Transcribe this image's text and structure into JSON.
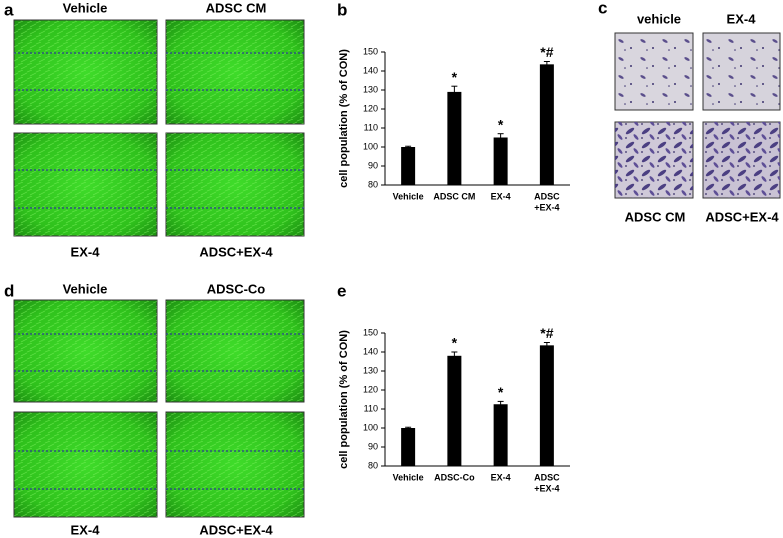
{
  "panels": [
    {
      "label": "a",
      "captions": [
        "Vehicle",
        "ADSC CM",
        "EX-4",
        "ADSC+EX-4"
      ]
    },
    {
      "label": "b"
    },
    {
      "label": "c",
      "captions": [
        "vehicle",
        "EX-4",
        "ADSC CM",
        "ADSC+EX-4"
      ]
    },
    {
      "label": "d",
      "captions": [
        "Vehicle",
        "ADSC-Co",
        "EX-4",
        "ADSC+EX-4"
      ]
    },
    {
      "label": "e"
    }
  ],
  "chart_data": [
    {
      "type": "bar",
      "y_label": "cell population (% of CON)",
      "categories": [
        "Vehicle",
        "ADSC CM",
        "EX-4",
        [
          "ADSC",
          "+EX-4"
        ]
      ],
      "values": [
        100,
        129,
        105,
        143.5
      ],
      "errors": [
        0.4,
        3,
        2,
        1.5
      ],
      "annotations": [
        null,
        "*",
        "*",
        "*#"
      ],
      "color": "#000000",
      "ylim": [
        80,
        150
      ],
      "yticks": [
        80,
        90,
        100,
        110,
        120,
        130,
        140,
        150
      ]
    },
    {
      "type": "bar",
      "y_label": "cell population (% of CON)",
      "categories": [
        "Vehicle",
        "ADSC-Co",
        "EX-4",
        [
          "ADSC",
          "+EX-4"
        ]
      ],
      "values": [
        100,
        138,
        112.5,
        143.5
      ],
      "errors": [
        0.4,
        2,
        1.5,
        1.5
      ],
      "annotations": [
        null,
        "*",
        "*",
        "*#"
      ],
      "color": "#000000",
      "ylim": [
        80,
        150
      ],
      "yticks": [
        80,
        90,
        100,
        110,
        120,
        130,
        140,
        150
      ]
    }
  ]
}
